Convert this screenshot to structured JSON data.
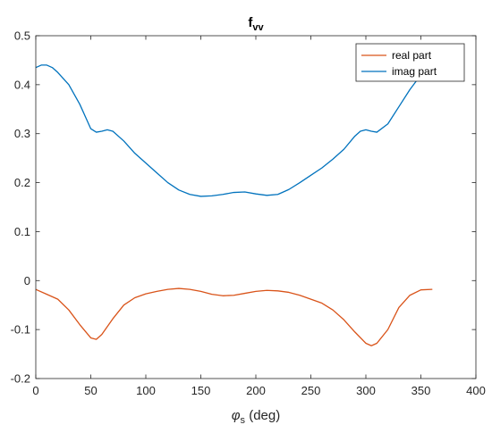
{
  "chart_data": {
    "type": "line",
    "title": "f",
    "title_subscript": "vv",
    "xlabel_symbol": "φ",
    "xlabel_subscript": "s",
    "xlabel_suffix": " (deg)",
    "ylabel": "",
    "xlim": [
      0,
      400
    ],
    "ylim": [
      -0.2,
      0.5
    ],
    "x_tick_labels": [
      "0",
      "50",
      "100",
      "150",
      "200",
      "250",
      "300",
      "350",
      "400"
    ],
    "y_tick_labels": [
      "-0.2",
      "-0.1",
      "0",
      "0.1",
      "0.2",
      "0.3",
      "0.4",
      "0.5"
    ],
    "grid": false,
    "legend_position": "top-right",
    "series": [
      {
        "name": "real part",
        "color": "#D95319",
        "x": [
          0,
          10,
          20,
          30,
          40,
          50,
          55,
          60,
          70,
          80,
          90,
          100,
          110,
          120,
          130,
          140,
          150,
          160,
          170,
          180,
          190,
          200,
          210,
          220,
          230,
          240,
          250,
          260,
          270,
          280,
          290,
          300,
          305,
          310,
          320,
          330,
          340,
          350,
          360
        ],
        "y": [
          -0.018,
          -0.028,
          -0.038,
          -0.06,
          -0.09,
          -0.117,
          -0.12,
          -0.11,
          -0.078,
          -0.05,
          -0.035,
          -0.027,
          -0.022,
          -0.018,
          -0.016,
          -0.018,
          -0.022,
          -0.028,
          -0.031,
          -0.03,
          -0.026,
          -0.022,
          -0.02,
          -0.021,
          -0.024,
          -0.03,
          -0.038,
          -0.046,
          -0.06,
          -0.08,
          -0.105,
          -0.128,
          -0.133,
          -0.128,
          -0.1,
          -0.055,
          -0.03,
          -0.019,
          -0.018
        ]
      },
      {
        "name": "imag part",
        "color": "#0072BD",
        "x": [
          0,
          5,
          10,
          15,
          20,
          30,
          40,
          50,
          55,
          60,
          65,
          70,
          80,
          90,
          100,
          110,
          120,
          130,
          140,
          150,
          160,
          170,
          180,
          190,
          200,
          210,
          220,
          230,
          240,
          250,
          260,
          270,
          280,
          290,
          295,
          300,
          305,
          310,
          320,
          330,
          340,
          350,
          355,
          360
        ],
        "y": [
          0.435,
          0.44,
          0.44,
          0.435,
          0.425,
          0.4,
          0.36,
          0.31,
          0.303,
          0.305,
          0.308,
          0.305,
          0.285,
          0.26,
          0.24,
          0.22,
          0.2,
          0.185,
          0.176,
          0.172,
          0.173,
          0.176,
          0.18,
          0.181,
          0.177,
          0.174,
          0.176,
          0.186,
          0.2,
          0.215,
          0.23,
          0.248,
          0.268,
          0.295,
          0.305,
          0.308,
          0.305,
          0.303,
          0.32,
          0.355,
          0.39,
          0.42,
          0.432,
          0.44
        ]
      }
    ]
  }
}
